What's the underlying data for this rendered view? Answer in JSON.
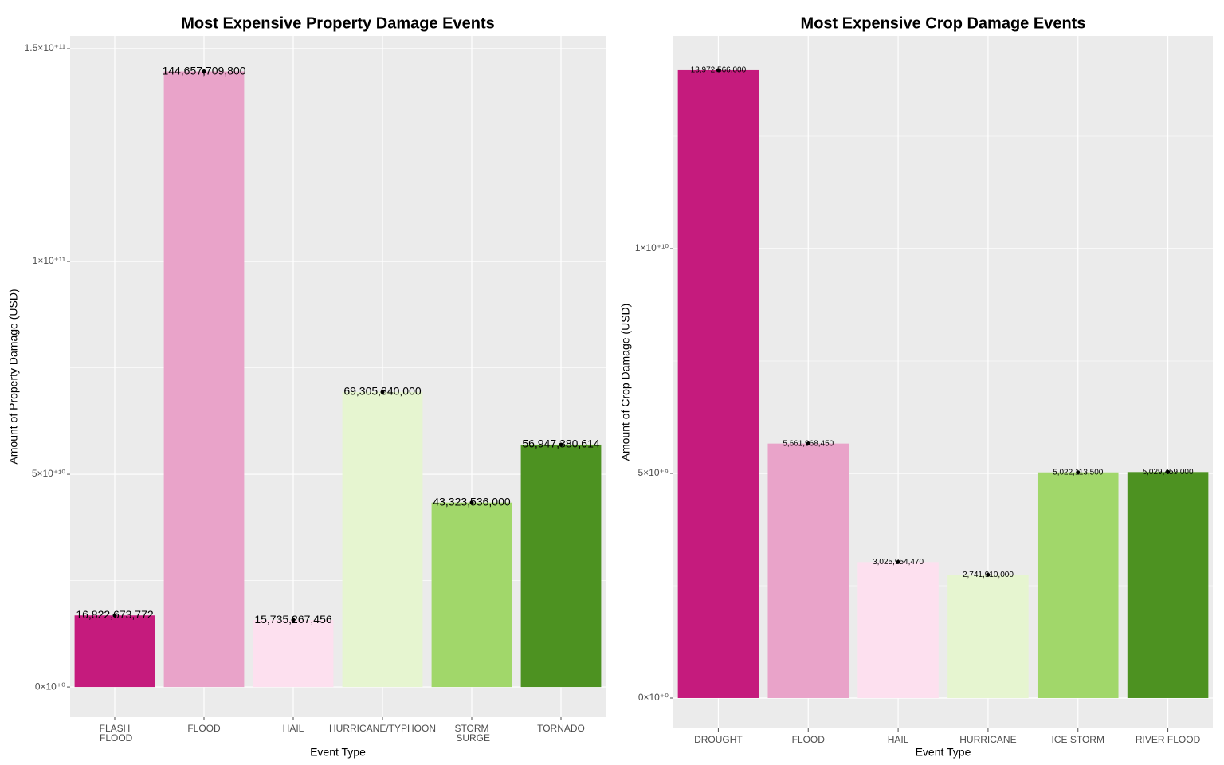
{
  "chart_data": [
    {
      "type": "bar",
      "title": "Most Expensive Property Damage Events",
      "x_label": "Event Type",
      "y_label": "Amount of Property Damage (USD)",
      "categories": [
        "FLASH FLOOD",
        "FLOOD",
        "HAIL",
        "HURRICANE/TYPHOON",
        "STORM SURGE",
        "TORNADO"
      ],
      "values": [
        16822673772,
        144657709800,
        15735267456,
        69305840000,
        43323536000,
        56947380614
      ],
      "value_labels": [
        "16,822,673,772",
        "144,657,709,800",
        "15,735,267,456",
        "69,305,840,000",
        "43,323,536,000",
        "56,947,380,614"
      ],
      "colors": [
        "#c51b7d",
        "#e9a3c9",
        "#fde0ef",
        "#e6f5d0",
        "#a1d76a",
        "#4d9221"
      ],
      "ylim": [
        -7100000000,
        153000000000
      ],
      "yticks": [
        {
          "value": 0,
          "label": "0×10⁺⁰"
        },
        {
          "value": 50000000000,
          "label": "5×10⁺¹⁰"
        },
        {
          "value": 100000000000,
          "label": "1×10⁺¹¹"
        },
        {
          "value": 150000000000,
          "label": "1.5×10⁺¹¹"
        }
      ],
      "minor_yticks": [
        25000000000,
        75000000000,
        125000000000
      ],
      "grid": true
    },
    {
      "type": "bar",
      "title": "Most Expensive Crop Damage Events",
      "x_label": "Event Type",
      "y_label": "Amount of Crop Damage (USD)",
      "categories": [
        "DROUGHT",
        "FLOOD",
        "HAIL",
        "HURRICANE",
        "ICE STORM",
        "RIVER FLOOD"
      ],
      "values": [
        13972566000,
        5661968450,
        3025954470,
        2741910000,
        5022113500,
        5029459000
      ],
      "value_labels": [
        "13,972,566,000",
        "5,661,968,450",
        "3,025,954,470",
        "2,741,910,000",
        "5,022,113,500",
        "5,029,459,000"
      ],
      "colors": [
        "#c51b7d",
        "#e9a3c9",
        "#fde0ef",
        "#e6f5d0",
        "#a1d76a",
        "#4d9221"
      ],
      "ylim": [
        -674000000,
        14734000000
      ],
      "yticks": [
        {
          "value": 0,
          "label": "0×10⁺⁰"
        },
        {
          "value": 5000000000,
          "label": "5×10⁺⁹"
        },
        {
          "value": 10000000000,
          "label": "1×10⁺¹⁰"
        }
      ],
      "minor_yticks": [
        2500000000,
        7500000000,
        12500000000
      ],
      "grid": true
    }
  ]
}
